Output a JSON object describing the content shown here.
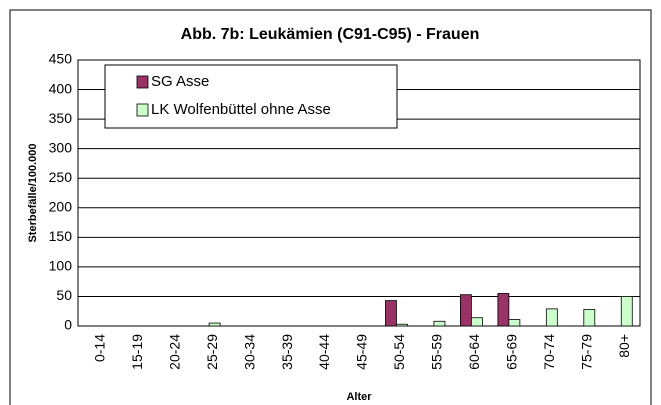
{
  "chart_data": {
    "type": "bar",
    "title": "Abb. 7b: Leukämien (C91-C95) - Frauen",
    "x_label": "Alter",
    "y_label": "Sterbefälle/100.000",
    "categories": [
      "0-14",
      "15-19",
      "20-24",
      "25-29",
      "30-34",
      "35-39",
      "40-44",
      "45-49",
      "50-54",
      "55-59",
      "60-64",
      "65-69",
      "70-74",
      "75-79",
      "80+"
    ],
    "series": [
      {
        "name": "SG Asse",
        "color": "#993366",
        "values": [
          0,
          0,
          0,
          0,
          0,
          0,
          0,
          0,
          43,
          0,
          53,
          55,
          0,
          0,
          0
        ]
      },
      {
        "name": "LK Wolfenbüttel ohne Asse",
        "color": "#ccffcc",
        "values": [
          0,
          0,
          0,
          5,
          0,
          0,
          0,
          0,
          3,
          8,
          14,
          11,
          29,
          28,
          50
        ]
      }
    ],
    "ylim": [
      0,
      450
    ],
    "yticks": [
      0,
      50,
      100,
      150,
      200,
      250,
      300,
      350,
      400,
      450
    ],
    "grid": true,
    "legend": "top-left"
  }
}
